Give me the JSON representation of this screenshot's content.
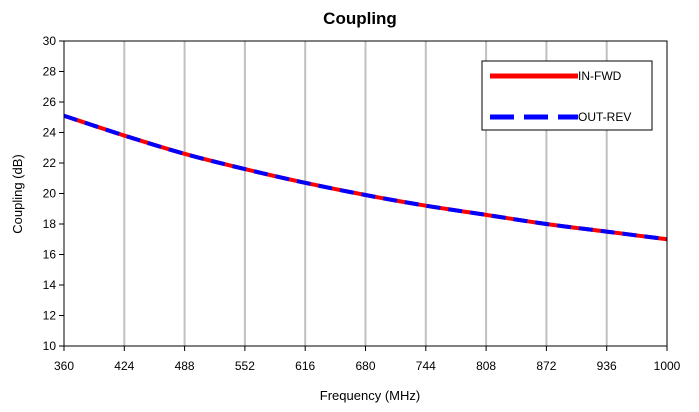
{
  "chart_data": {
    "type": "line",
    "title": "Coupling",
    "xlabel": "Frequency (MHz)",
    "ylabel": "Coupling (dB)",
    "xlim": [
      360,
      1000
    ],
    "ylim": [
      10,
      30
    ],
    "x_ticks": [
      360,
      424,
      488,
      552,
      616,
      680,
      744,
      808,
      872,
      936,
      1000
    ],
    "y_ticks": [
      10,
      12,
      14,
      16,
      18,
      20,
      22,
      24,
      26,
      28,
      30
    ],
    "grid": "vertical",
    "legend_position": "top-right",
    "x": [
      360,
      424,
      488,
      552,
      616,
      680,
      744,
      808,
      872,
      936,
      1000
    ],
    "series": [
      {
        "name": "IN-FWD",
        "color": "#ff0000",
        "style": "solid",
        "values": [
          25.1,
          23.8,
          22.6,
          21.6,
          20.7,
          19.9,
          19.2,
          18.6,
          18.0,
          17.5,
          17.0
        ]
      },
      {
        "name": "OUT-REV",
        "color": "#0000ff",
        "style": "dashed",
        "values": [
          25.1,
          23.8,
          22.6,
          21.6,
          20.7,
          19.9,
          19.2,
          18.6,
          18.0,
          17.5,
          17.0
        ]
      }
    ]
  }
}
